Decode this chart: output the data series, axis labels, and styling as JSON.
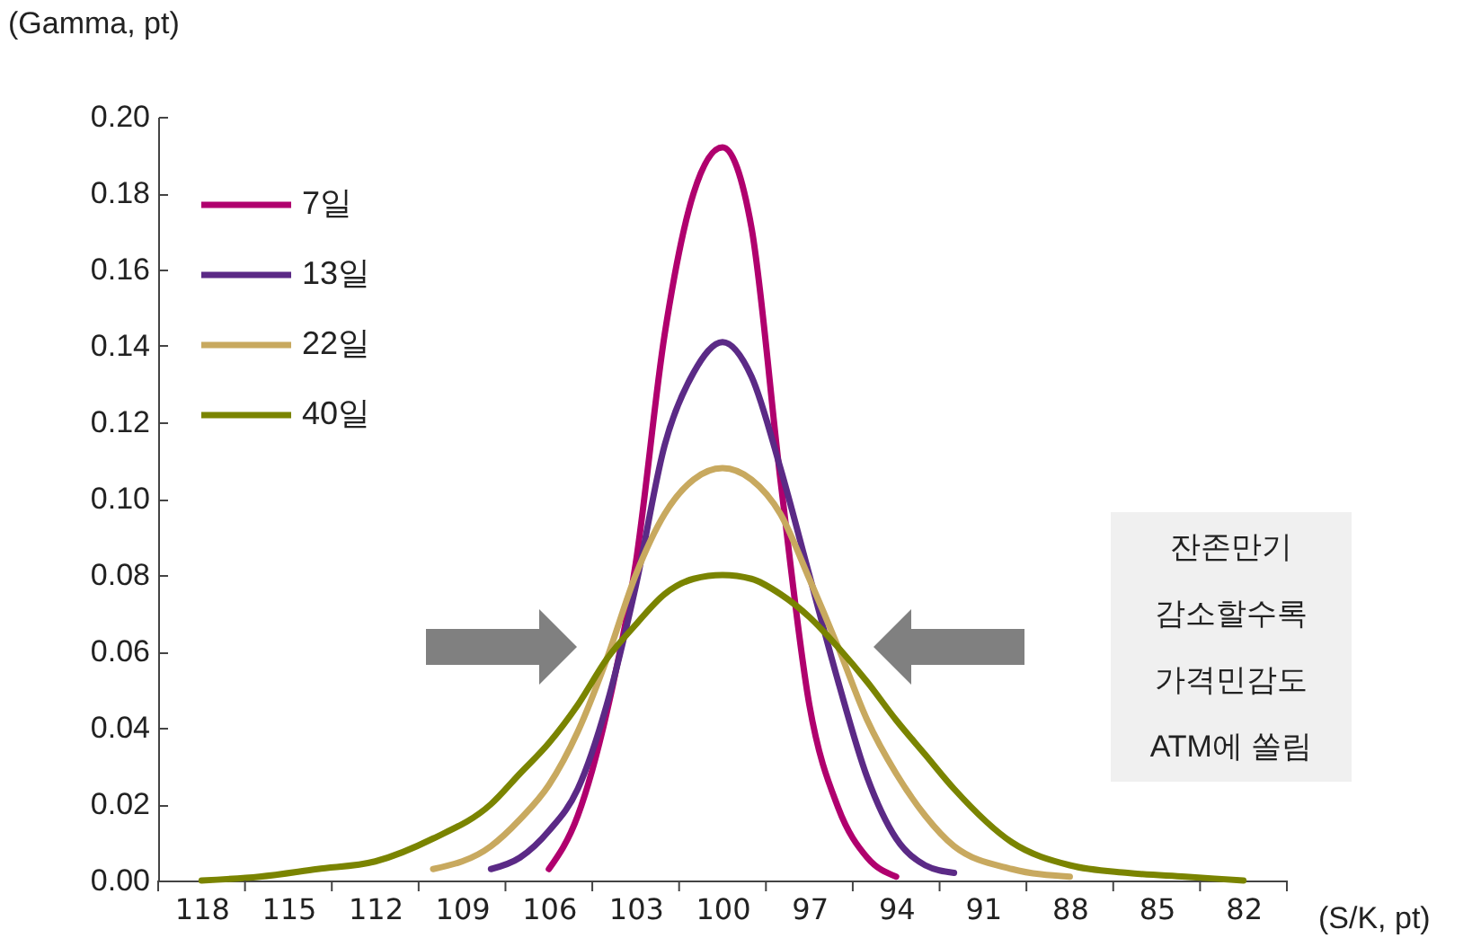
{
  "chart_data": {
    "type": "line",
    "ylabel": "(Gamma, pt)",
    "xlabel": "(S/K, pt)",
    "x": [
      118,
      116,
      114,
      112,
      110,
      108,
      107,
      106,
      105,
      104,
      103,
      102,
      101,
      100,
      99,
      98,
      97,
      96,
      95,
      94,
      93,
      92,
      90,
      88,
      86,
      84,
      82
    ],
    "series": [
      {
        "name": "7일",
        "color": "#b0006e",
        "x": [
          106,
          105,
          104,
          103,
          102,
          101,
          100,
          99,
          98,
          97,
          96,
          95,
          94
        ],
        "values": [
          0.003,
          0.017,
          0.044,
          0.083,
          0.143,
          0.18,
          0.192,
          0.171,
          0.105,
          0.046,
          0.019,
          0.006,
          0.001
        ]
      },
      {
        "name": "13일",
        "color": "#5b2a86",
        "x": [
          108,
          107,
          106,
          105,
          104,
          103,
          102,
          101,
          100,
          99,
          98,
          97,
          96,
          95,
          94,
          93,
          92
        ],
        "values": [
          0.003,
          0.006,
          0.013,
          0.024,
          0.046,
          0.077,
          0.114,
          0.133,
          0.141,
          0.132,
          0.108,
          0.08,
          0.052,
          0.027,
          0.011,
          0.004,
          0.002
        ]
      },
      {
        "name": "22일",
        "color": "#c8a95f",
        "x": [
          110,
          108,
          107,
          106,
          105,
          104,
          103,
          102,
          101,
          100,
          99,
          98,
          97,
          96,
          95,
          94,
          93,
          92,
          90,
          88
        ],
        "values": [
          0.003,
          0.009,
          0.016,
          0.025,
          0.039,
          0.058,
          0.08,
          0.096,
          0.105,
          0.108,
          0.105,
          0.096,
          0.079,
          0.061,
          0.042,
          0.028,
          0.017,
          0.009,
          0.003,
          0.001
        ]
      },
      {
        "name": "40일",
        "color": "#7a8400",
        "values": [
          0,
          0.001,
          0.003,
          0.005,
          0.011,
          0.02,
          0.028,
          0.036,
          0.046,
          0.058,
          0.067,
          0.075,
          0.079,
          0.08,
          0.079,
          0.075,
          0.069,
          0.061,
          0.052,
          0.042,
          0.033,
          0.024,
          0.01,
          0.004,
          0.002,
          0.001,
          0
        ]
      }
    ],
    "xlim": [
      119.5,
      80.5
    ],
    "xticks": [
      {
        "value": 119.5,
        "label": null
      },
      118,
      {
        "value": 116.5,
        "label": null
      },
      115,
      {
        "value": 113.5,
        "label": null
      },
      112,
      {
        "value": 110.5,
        "label": null
      },
      109,
      {
        "value": 107.5,
        "label": null
      },
      106,
      {
        "value": 104.5,
        "label": null
      },
      103,
      {
        "value": 101.5,
        "label": null
      },
      100,
      {
        "value": 98.5,
        "label": null
      },
      97,
      {
        "value": 95.5,
        "label": null
      },
      94,
      {
        "value": 92.5,
        "label": null
      },
      91,
      {
        "value": 89.5,
        "label": null
      },
      88,
      {
        "value": 86.5,
        "label": null
      },
      85,
      {
        "value": 83.5,
        "label": null
      },
      82,
      {
        "value": 80.5,
        "label": null
      }
    ],
    "ylim": [
      0,
      0.2
    ],
    "yticks": [
      {
        "value": 0,
        "label": "0.00"
      },
      {
        "value": 0.02,
        "label": "0.02"
      },
      {
        "value": 0.04,
        "label": "0.04"
      },
      {
        "value": 0.06,
        "label": "0.06"
      },
      {
        "value": 0.08,
        "label": "0.08"
      },
      {
        "value": 0.1,
        "label": "0.10"
      },
      {
        "value": 0.12,
        "label": "0.12"
      },
      {
        "value": 0.14,
        "label": "0.14"
      },
      {
        "value": 0.16,
        "label": "0.16"
      },
      {
        "value": 0.18,
        "label": "0.18"
      },
      {
        "value": 0.2,
        "label": "0.20"
      }
    ],
    "legend": "top left",
    "line_style": "solid",
    "annotations": [
      "잔존만기\n감소할수록\n가격민감도\nATM에 쏠림"
    ]
  }
}
